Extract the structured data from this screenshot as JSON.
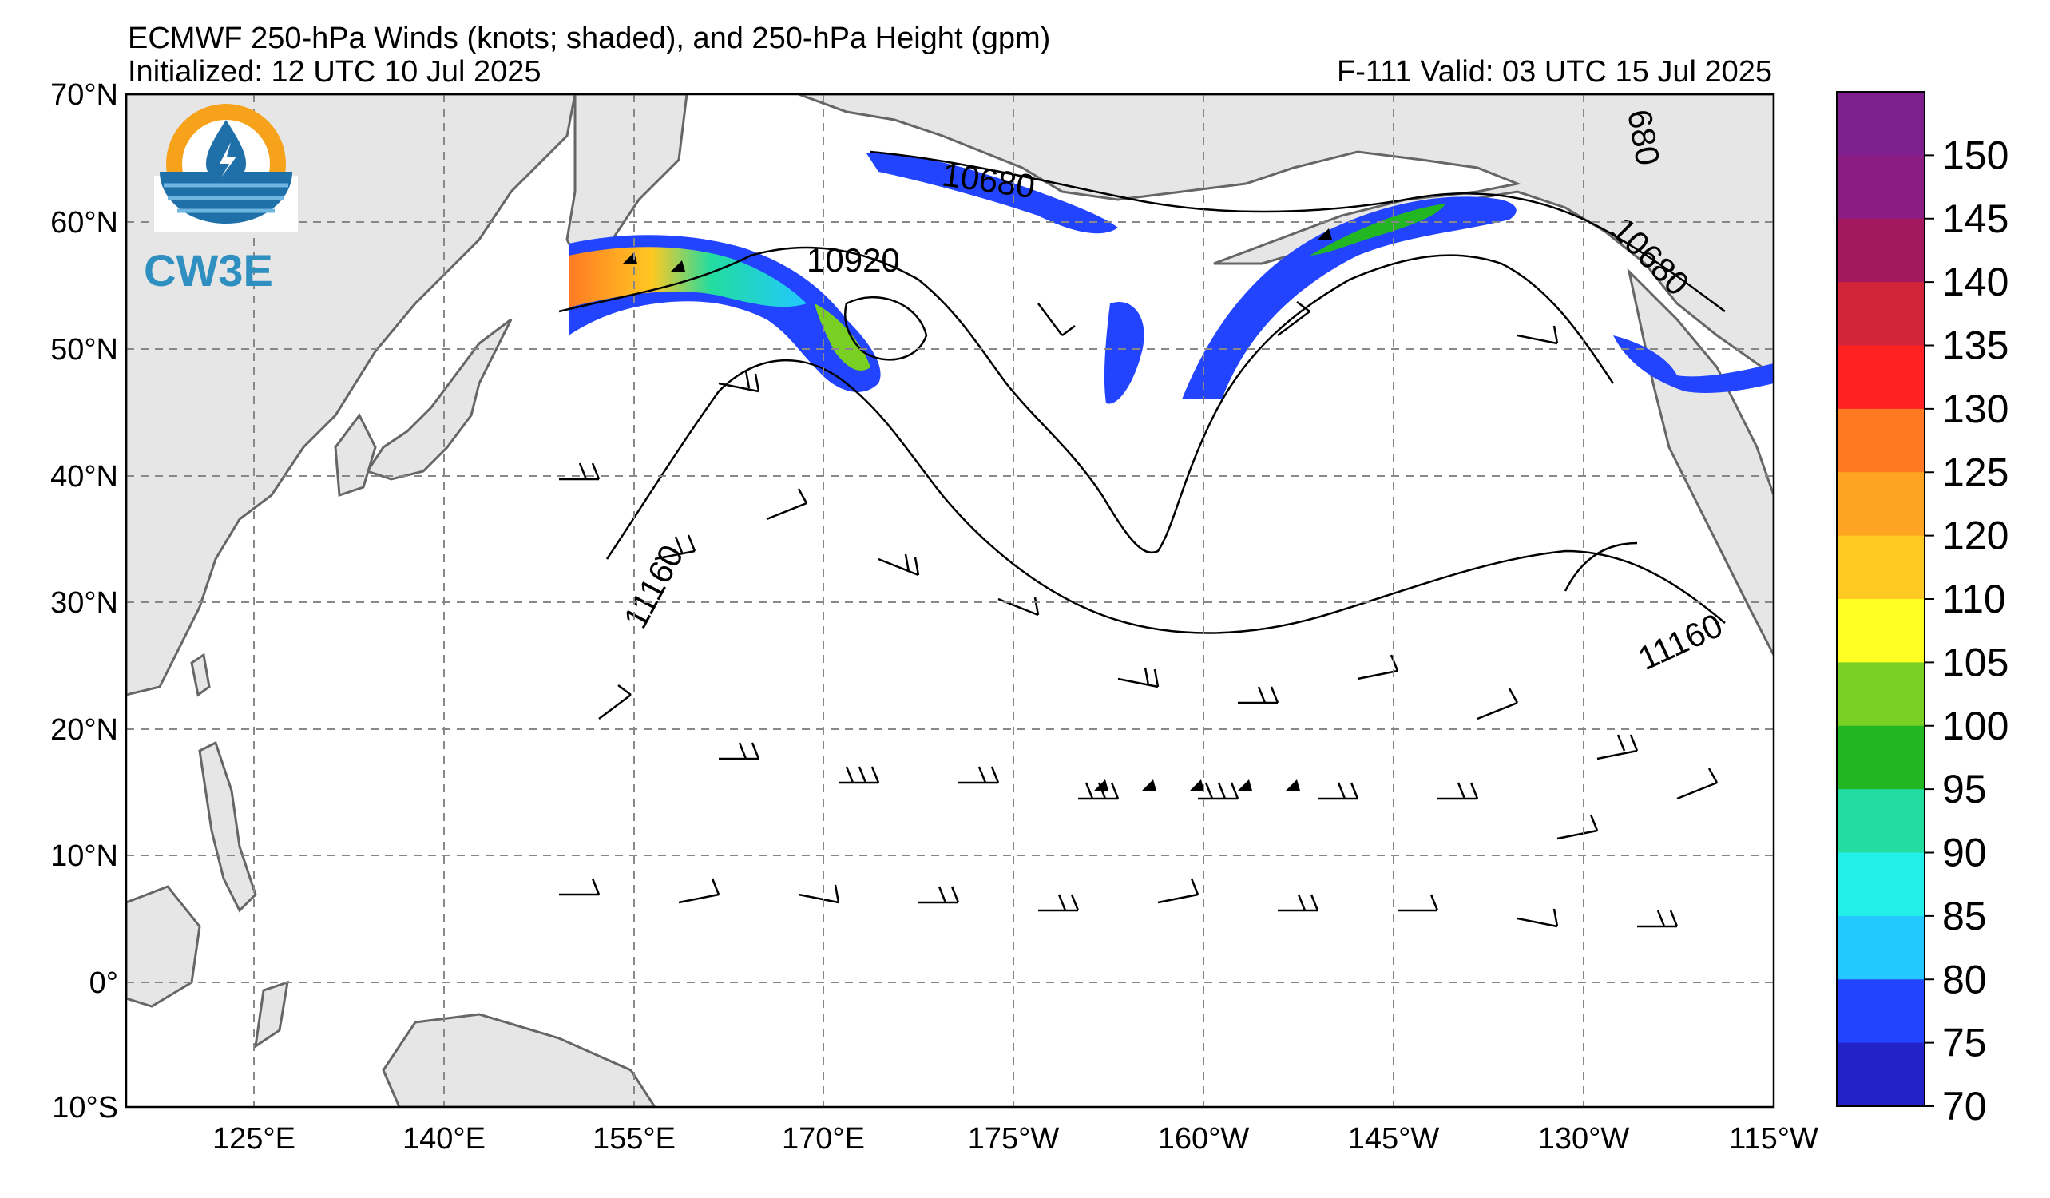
{
  "header": {
    "title": "ECMWF 250-hPa Winds (knots; shaded), and 250-hPa Height (gpm)",
    "initialized": "Initialized: 12 UTC 10 Jul 2025",
    "valid": "F-111  Valid: 03 UTC 15 Jul 2025"
  },
  "logo": {
    "text": "CW3E"
  },
  "map": {
    "lon_labels": [
      "125°E",
      "140°E",
      "155°E",
      "170°E",
      "175°W",
      "160°W",
      "145°W",
      "130°W",
      "115°W"
    ],
    "lat_labels": [
      "70°N",
      "60°N",
      "50°N",
      "40°N",
      "30°N",
      "20°N",
      "10°N",
      "0°",
      "10°S"
    ],
    "contour_labels": [
      "10680",
      "10920",
      "11160",
      "11160",
      "10680",
      "680"
    ],
    "colors": {
      "land": "#e6e6e6",
      "ocean": "#ffffff",
      "coastline": "#666666",
      "gridline": "#888888",
      "contour": "#000000"
    }
  },
  "colorbar": {
    "labels": [
      "150",
      "145",
      "140",
      "135",
      "130",
      "125",
      "120",
      "110",
      "105",
      "100",
      "95",
      "90",
      "85",
      "80",
      "75",
      "70"
    ],
    "colors": [
      "#7e1f8e",
      "#8a1c82",
      "#a3185e",
      "#d3253a",
      "#ff2222",
      "#ff7a22",
      "#ffa422",
      "#ffc822",
      "#ffff22",
      "#7ad022",
      "#22b622",
      "#22dca0",
      "#22f0e8",
      "#22c8ff",
      "#2244ff",
      "#2222c8"
    ]
  }
}
